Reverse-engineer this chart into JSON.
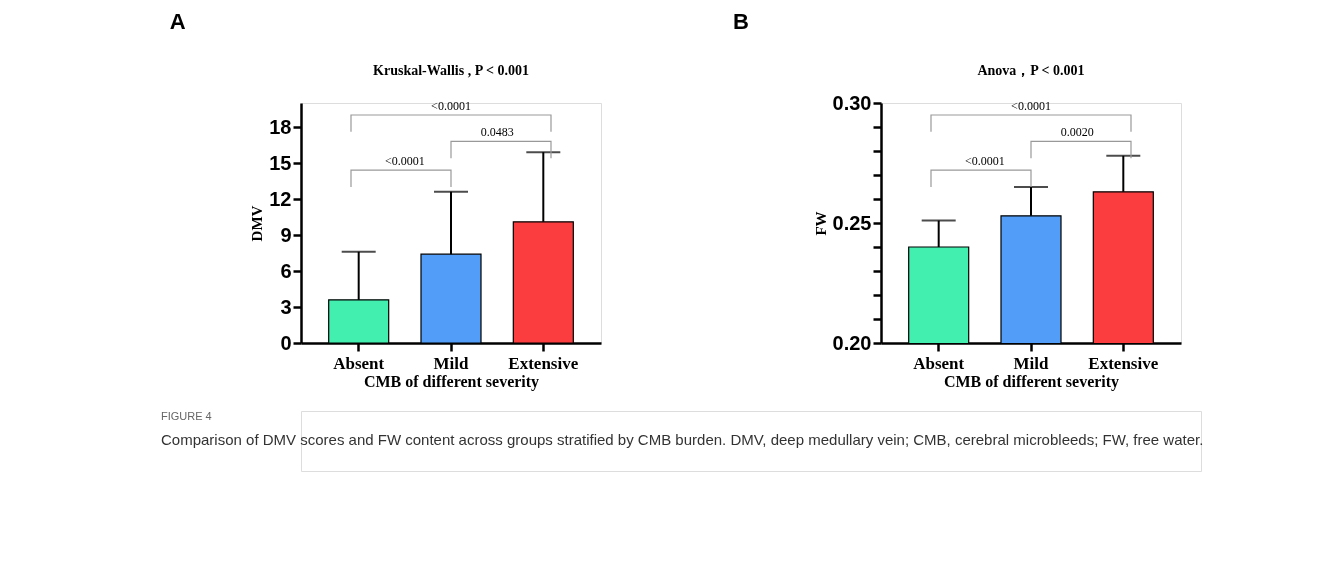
{
  "chart_data": [
    {
      "type": "bar",
      "title": "A",
      "subtitle": "Kruskal-Wallis , P < 0.001",
      "xlabel": "CMB of different severity",
      "ylabel": "DMV",
      "categories": [
        "Absent",
        "Mild",
        "Extensive"
      ],
      "values": [
        3.6,
        7.4,
        10.1
      ],
      "errors": [
        [
          3.6,
          7.6
        ],
        [
          7.4,
          12.6
        ],
        [
          10.1,
          15.9
        ]
      ],
      "colors": [
        "#42efae",
        "#519df8",
        "#fb3d40"
      ],
      "ylim": [
        0,
        20
      ],
      "yticks": [
        0,
        3,
        6,
        9,
        12,
        15,
        18
      ],
      "grid": false,
      "legend": false,
      "annotations": [
        "<0.0001",
        "0.0483",
        "<0.0001",
        "FIGURE 4",
        "Comparison of DMV scores and FW content across groups stratified by CMB burden. DMV, deep medullary vein; CMB, cerebral microbleeds; FW, free water."
      ]
    },
    {
      "type": "bar",
      "title": "B",
      "subtitle": "Anova，P < 0.001",
      "xlabel": "CMB of different severity",
      "ylabel": "FW",
      "categories": [
        "Absent",
        "Mild",
        "Extensive"
      ],
      "values": [
        0.24,
        0.253,
        0.263
      ],
      "errors": [
        [
          0.24,
          0.251
        ],
        [
          0.253,
          0.265
        ],
        [
          0.263,
          0.278
        ]
      ],
      "colors": [
        "#42efae",
        "#519df8",
        "#fb3d40"
      ],
      "ylim": [
        0.2,
        0.3
      ],
      "yticks": [
        {
          "value": 0.2,
          "label": "0.20"
        },
        {
          "value": 0.21,
          "label": null
        },
        {
          "value": 0.22,
          "label": null
        },
        {
          "value": 0.23,
          "label": null
        },
        {
          "value": 0.24,
          "label": null
        },
        0.25,
        {
          "value": 0.26,
          "label": null
        },
        {
          "value": 0.27,
          "label": null
        },
        {
          "value": 0.28,
          "label": null
        },
        {
          "value": 0.29,
          "label": null
        },
        {
          "value": 0.3,
          "label": "0.30"
        }
      ],
      "grid": false,
      "legend": false,
      "annotations": [
        "<0.0001",
        "0.0020",
        "<0.0001"
      ]
    }
  ]
}
